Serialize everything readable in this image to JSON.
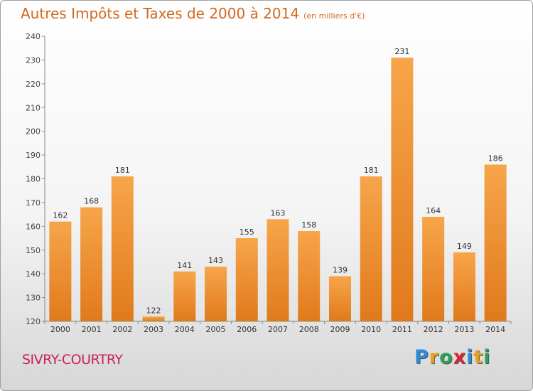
{
  "title": "Autres Impôts et Taxes de 2000 à 2014",
  "subtitle": "(en milliers d'€)",
  "location": "SIVRY-COURTRY",
  "brand": {
    "letters": [
      "P",
      "r",
      "o",
      "x",
      "i",
      "t",
      "i"
    ],
    "colors": [
      "#2e8bd8",
      "#e8a020",
      "#2ba05a",
      "#d8262e",
      "#2e8bd8",
      "#e8a020",
      "#2ba05a"
    ]
  },
  "colors": {
    "bar_light": "#f7a54a",
    "bar_dark": "#e07a1c",
    "title": "#d2691e",
    "location": "#cc2255"
  },
  "chart_data": {
    "type": "bar",
    "categories": [
      "2000",
      "2001",
      "2002",
      "2003",
      "2004",
      "2005",
      "2006",
      "2007",
      "2008",
      "2009",
      "2010",
      "2011",
      "2012",
      "2013",
      "2014"
    ],
    "values": [
      162,
      168,
      181,
      122,
      141,
      143,
      155,
      163,
      158,
      139,
      181,
      231,
      164,
      149,
      186
    ],
    "ylim": [
      120,
      240
    ],
    "yticks": [
      120,
      130,
      140,
      150,
      160,
      170,
      180,
      190,
      200,
      210,
      220,
      230,
      240
    ],
    "grid": false
  }
}
